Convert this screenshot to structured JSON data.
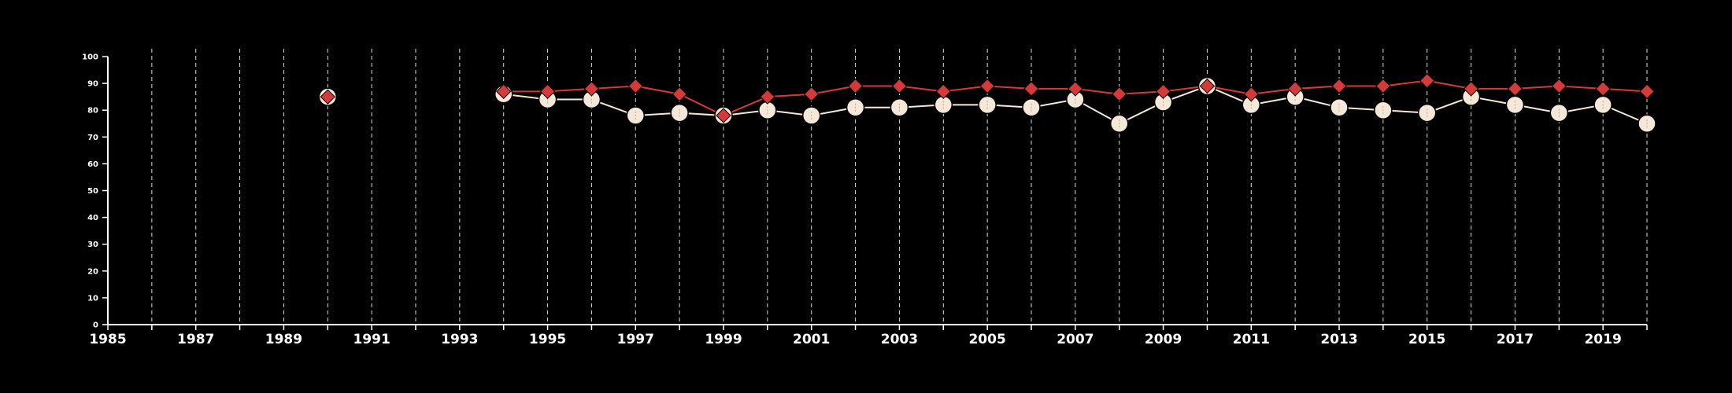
{
  "colors": {
    "background": "#000000",
    "axis": "#ffffff",
    "grid": "#d8d8d8",
    "series_red": "#d43a3a",
    "series_cream": "#f5e8d8"
  },
  "chart_data": {
    "type": "line",
    "title": "",
    "xlabel": "",
    "ylabel": "",
    "xlim": [
      1985,
      2020
    ],
    "ylim": [
      0,
      100
    ],
    "xticks": [
      1985,
      1987,
      1989,
      1991,
      1993,
      1995,
      1997,
      1999,
      2001,
      2003,
      2005,
      2007,
      2009,
      2011,
      2013,
      2015,
      2017,
      2019
    ],
    "yticks": [
      0,
      10,
      20,
      30,
      40,
      50,
      60,
      70,
      80,
      90,
      100
    ],
    "grid": "vertical dashed lines at each year",
    "legend": "none",
    "series": [
      {
        "marker": "diamond",
        "color": "#d43a3a",
        "points": [
          [
            1990,
            85
          ],
          [
            1994,
            87
          ],
          [
            1995,
            87
          ],
          [
            1996,
            88
          ],
          [
            1997,
            89
          ],
          [
            1998,
            86
          ],
          [
            1999,
            78
          ],
          [
            2000,
            85
          ],
          [
            2001,
            86
          ],
          [
            2002,
            89
          ],
          [
            2003,
            89
          ],
          [
            2004,
            87
          ],
          [
            2005,
            89
          ],
          [
            2006,
            88
          ],
          [
            2007,
            88
          ],
          [
            2008,
            86
          ],
          [
            2009,
            87
          ],
          [
            2010,
            89
          ],
          [
            2011,
            86
          ],
          [
            2012,
            88
          ],
          [
            2013,
            89
          ],
          [
            2014,
            89
          ],
          [
            2015,
            91
          ],
          [
            2016,
            88
          ],
          [
            2017,
            88
          ],
          [
            2018,
            89
          ],
          [
            2019,
            88
          ],
          [
            2020,
            87
          ]
        ]
      },
      {
        "marker": "circle",
        "color": "#f5e8d8",
        "points": [
          [
            1990,
            85
          ],
          [
            1994,
            86
          ],
          [
            1995,
            84
          ],
          [
            1996,
            84
          ],
          [
            1997,
            78
          ],
          [
            1998,
            79
          ],
          [
            1999,
            78
          ],
          [
            2000,
            80
          ],
          [
            2001,
            78
          ],
          [
            2002,
            81
          ],
          [
            2003,
            81
          ],
          [
            2004,
            82
          ],
          [
            2005,
            82
          ],
          [
            2006,
            81
          ],
          [
            2007,
            84
          ],
          [
            2008,
            75
          ],
          [
            2009,
            83
          ],
          [
            2010,
            89
          ],
          [
            2011,
            82
          ],
          [
            2012,
            85
          ],
          [
            2013,
            81
          ],
          [
            2014,
            80
          ],
          [
            2015,
            79
          ],
          [
            2016,
            85
          ],
          [
            2017,
            82
          ],
          [
            2018,
            79
          ],
          [
            2019,
            82
          ],
          [
            2020,
            75
          ]
        ]
      }
    ]
  }
}
